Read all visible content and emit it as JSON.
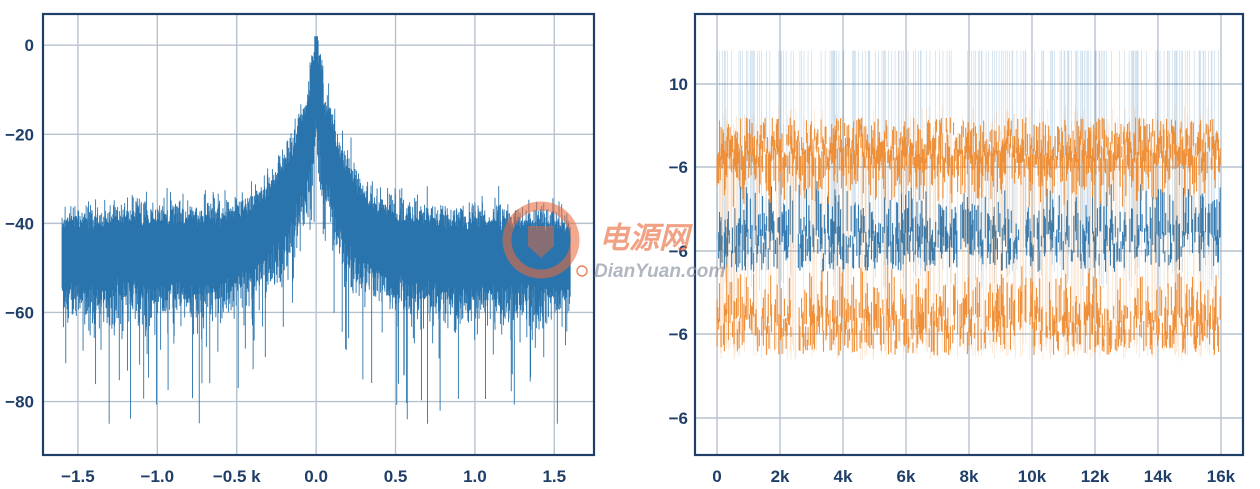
{
  "chart_data": [
    {
      "type": "line",
      "title": "",
      "xlabel": "",
      "ylabel": "",
      "xlim": [
        -1.72,
        1.75
      ],
      "ylim": [
        -92,
        7
      ],
      "x_ticks": [
        {
          "value": -1.5,
          "label": "−1.5"
        },
        {
          "value": -1.0,
          "label": "−1.0"
        },
        {
          "value": -0.5,
          "label": "−0.5 k"
        },
        {
          "value": 0.0,
          "label": "0.0"
        },
        {
          "value": 0.5,
          "label": "0.5"
        },
        {
          "value": 1.0,
          "label": "1.0"
        },
        {
          "value": 1.5,
          "label": "1.5"
        }
      ],
      "y_ticks": [
        {
          "value": 0,
          "label": "0"
        },
        {
          "value": -20,
          "label": "−20"
        },
        {
          "value": -40,
          "label": "−40"
        },
        {
          "value": -60,
          "label": "−60"
        },
        {
          "value": -80,
          "label": "−80"
        }
      ],
      "series": [
        {
          "color": "#2a74ad",
          "x": [
            -1.6,
            -1.4,
            -1.2,
            -1.0,
            -0.8,
            -0.6,
            -0.4,
            -0.3,
            -0.2,
            -0.15,
            -0.1,
            -0.05,
            0.0,
            0.05,
            0.1,
            0.15,
            0.2,
            0.3,
            0.4,
            0.6,
            0.8,
            1.0,
            1.2,
            1.4,
            1.6
          ],
          "y": [
            -47,
            -47,
            -46,
            -46,
            -46,
            -46,
            -43,
            -40,
            -35,
            -32,
            -25,
            -22,
            -8,
            -22,
            -26,
            -33,
            -36,
            -41,
            -44,
            -46,
            -47,
            -47,
            -47,
            -47,
            -48
          ]
        }
      ],
      "grid": true
    },
    {
      "type": "line",
      "title": "",
      "xlabel": "",
      "ylabel": "",
      "xlim": [
        -700,
        16700
      ],
      "y_ticks": [
        {
          "label": "10"
        },
        {
          "label": "−6"
        },
        {
          "label": "−6"
        },
        {
          "label": "−6"
        },
        {
          "label": "−6"
        }
      ],
      "x_ticks": [
        {
          "value": 0,
          "label": "0"
        },
        {
          "value": 2000,
          "label": "2k"
        },
        {
          "value": 4000,
          "label": "4k"
        },
        {
          "value": 6000,
          "label": "6k"
        },
        {
          "value": 8000,
          "label": "8k"
        },
        {
          "value": 10000,
          "label": "10k"
        },
        {
          "value": 12000,
          "label": "12k"
        },
        {
          "value": 14000,
          "label": "14k"
        },
        {
          "value": 16000,
          "label": "16k"
        }
      ],
      "series": [
        {
          "color": "#2a74ad",
          "x": [
            0,
            16000
          ],
          "y_levels": [
            4,
            3
          ],
          "y_spread": [
            4.3,
            2.5
          ]
        },
        {
          "color": "#ee8a2f",
          "x": [
            0,
            16000
          ],
          "y_levels": [
            2.1,
            1.1
          ],
          "y_spread": [
            3.0,
            0.7
          ]
        }
      ],
      "grid": true
    }
  ],
  "watermark": {
    "cn_text": "电源网",
    "en_text": "DianYuan.com",
    "color": "#e8693a"
  }
}
